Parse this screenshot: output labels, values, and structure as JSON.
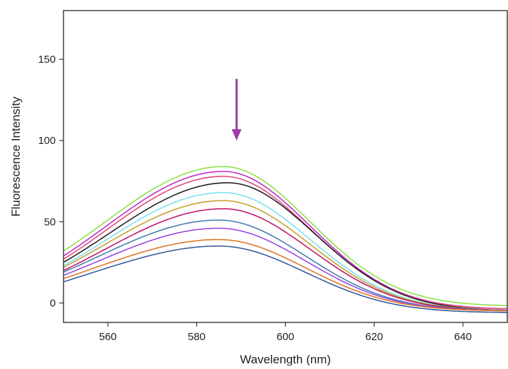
{
  "chart_data": {
    "type": "line",
    "title": "",
    "xlabel": "Wavelength (nm)",
    "ylabel": "Fluorescence Intensity",
    "xlim": [
      550,
      650
    ],
    "ylim": [
      -12,
      180
    ],
    "xticks": [
      560,
      580,
      600,
      620,
      640
    ],
    "yticks": [
      0,
      50,
      100,
      150
    ],
    "grid": false,
    "legend": "none",
    "annotation": {
      "type": "arrow",
      "direction": "down",
      "x": 589,
      "y_from": 138,
      "y_to": 100,
      "color": "#a03aa8"
    },
    "series": [
      {
        "color": "#8ee04a",
        "peak": 84,
        "peak_x": 586,
        "start": 32,
        "end": -2
      },
      {
        "color": "#c02ec4",
        "peak": 81,
        "peak_x": 586,
        "start": 29,
        "end": -4
      },
      {
        "color": "#e04a7a",
        "peak": 78,
        "peak_x": 586,
        "start": 27,
        "end": -4
      },
      {
        "color": "#222222",
        "peak": 74,
        "peak_x": 587,
        "start": 25,
        "end": -5
      },
      {
        "color": "#7fe0f0",
        "peak": 68,
        "peak_x": 586,
        "start": 23,
        "end": -5
      },
      {
        "color": "#c8a030",
        "peak": 63,
        "peak_x": 586,
        "start": 22,
        "end": -5
      },
      {
        "color": "#c0186a",
        "peak": 58,
        "peak_x": 586,
        "start": 20,
        "end": -5
      },
      {
        "color": "#4a7cb4",
        "peak": 51,
        "peak_x": 585,
        "start": 19,
        "end": -5
      },
      {
        "color": "#9a48e0",
        "peak": 46,
        "peak_x": 585,
        "start": 17,
        "end": -5
      },
      {
        "color": "#e07828",
        "peak": 39,
        "peak_x": 585,
        "start": 15,
        "end": -5
      },
      {
        "color": "#3a5c9e",
        "peak": 35,
        "peak_x": 585,
        "start": 13,
        "end": -6
      }
    ]
  }
}
